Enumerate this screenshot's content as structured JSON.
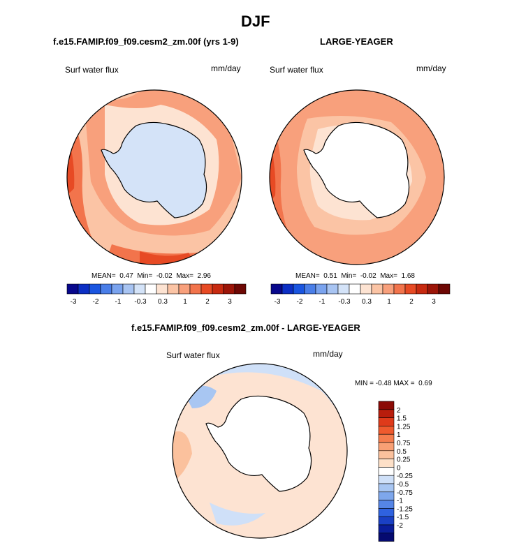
{
  "title": "DJF",
  "panels": {
    "left": {
      "title": "f.e15.FAMIP.f09_f09.cesm2_zm.00f (yrs 1-9)",
      "variable": "Surf water flux",
      "units": "mm/day",
      "stats": {
        "mean_label": "MEAN=",
        "mean": "0.47",
        "min_label": "Min=",
        "min": "-0.02",
        "max_label": "Max=",
        "max": "2.96"
      }
    },
    "right": {
      "title": "LARGE-YEAGER",
      "variable": "Surf water flux",
      "units": "mm/day",
      "stats": {
        "mean_label": "MEAN=",
        "mean": "0.51",
        "min_label": "Min=",
        "min": "-0.02",
        "max_label": "Max=",
        "max": "1.68"
      }
    },
    "diff": {
      "title": "f.e15.FAMIP.f09_f09.cesm2_zm.00f - LARGE-YEAGER",
      "variable": "Surf water flux",
      "units": "mm/day",
      "stats": {
        "min_label": "MIN =",
        "min": "-0.48",
        "max_label": "MAX =",
        "max": "0.69"
      }
    }
  },
  "colorbar_h": {
    "colors": [
      "#08088c",
      "#0c2fc4",
      "#1a55e0",
      "#4a7ee8",
      "#7aa3ee",
      "#a8c4f2",
      "#d4e3f8",
      "#ffffff",
      "#fde3d2",
      "#fbc4a5",
      "#f8a07c",
      "#f2744c",
      "#e74a24",
      "#c72a10",
      "#9c1508",
      "#6e0804"
    ],
    "ticks": [
      "-3",
      "-2",
      "-1",
      "-0.3",
      "0.3",
      "1",
      "2",
      "3"
    ]
  },
  "colorbar_v": {
    "colors": [
      "#8b0a05",
      "#b81d0c",
      "#df3a1a",
      "#ef5a2e",
      "#f57d4e",
      "#f9a075",
      "#fbc19d",
      "#fde0c8",
      "#ffffff",
      "#cfe0f8",
      "#a8c6f2",
      "#7ea7ec",
      "#5585e6",
      "#2f62df",
      "#1a40c4",
      "#0a1d9a",
      "#050a70"
    ],
    "ticks": [
      "2",
      "1.5",
      "1.25",
      "1",
      "0.75",
      "0.5",
      "0.25",
      "0",
      "-0.25",
      "-0.5",
      "-0.75",
      "-1",
      "-1.25",
      "-1.5",
      "-2"
    ]
  }
}
